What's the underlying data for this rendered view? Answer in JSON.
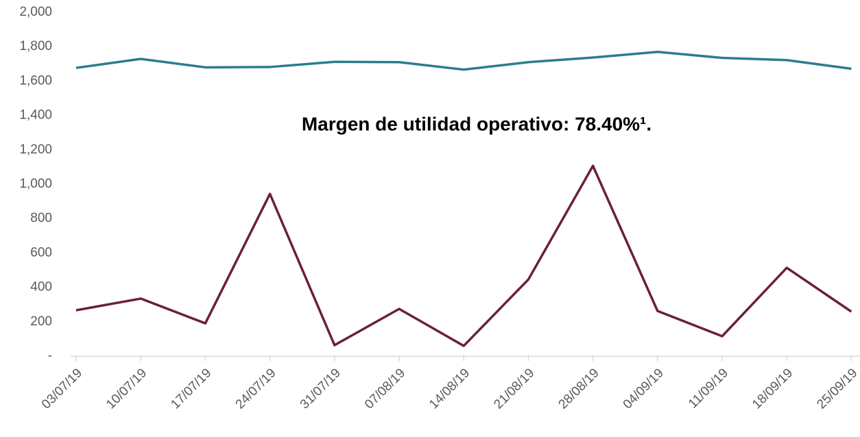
{
  "chart_data": {
    "type": "line",
    "annotation": "Margen de utilidad operativo: 78.40%¹.",
    "categories": [
      "03/07/19",
      "10/07/19",
      "17/07/19",
      "24/07/19",
      "31/07/19",
      "07/08/19",
      "14/08/19",
      "21/08/19",
      "28/08/19",
      "04/09/19",
      "11/09/19",
      "18/09/19",
      "25/09/19"
    ],
    "series": [
      {
        "color": "#2a7d8e",
        "values": [
          1677,
          1729,
          1680,
          1682,
          1712,
          1710,
          1667,
          1710,
          1737,
          1770,
          1735,
          1722,
          1672
        ]
      },
      {
        "color": "#6b1f3a",
        "values": [
          267,
          335,
          191,
          944,
          64,
          275,
          60,
          446,
          1107,
          263,
          116,
          514,
          259
        ]
      }
    ],
    "ylim": [
      0,
      2000
    ],
    "yticks": [
      {
        "value": 0,
        "label": "-"
      },
      200,
      400,
      600,
      800,
      {
        "value": 1000,
        "label": "1,000"
      },
      {
        "value": 1200,
        "label": "1,200"
      },
      {
        "value": 1400,
        "label": "1,400"
      },
      {
        "value": 1600,
        "label": "1,600"
      },
      {
        "value": 1800,
        "label": "1,800"
      },
      {
        "value": 2000,
        "label": "2,000"
      }
    ],
    "grid": false
  }
}
